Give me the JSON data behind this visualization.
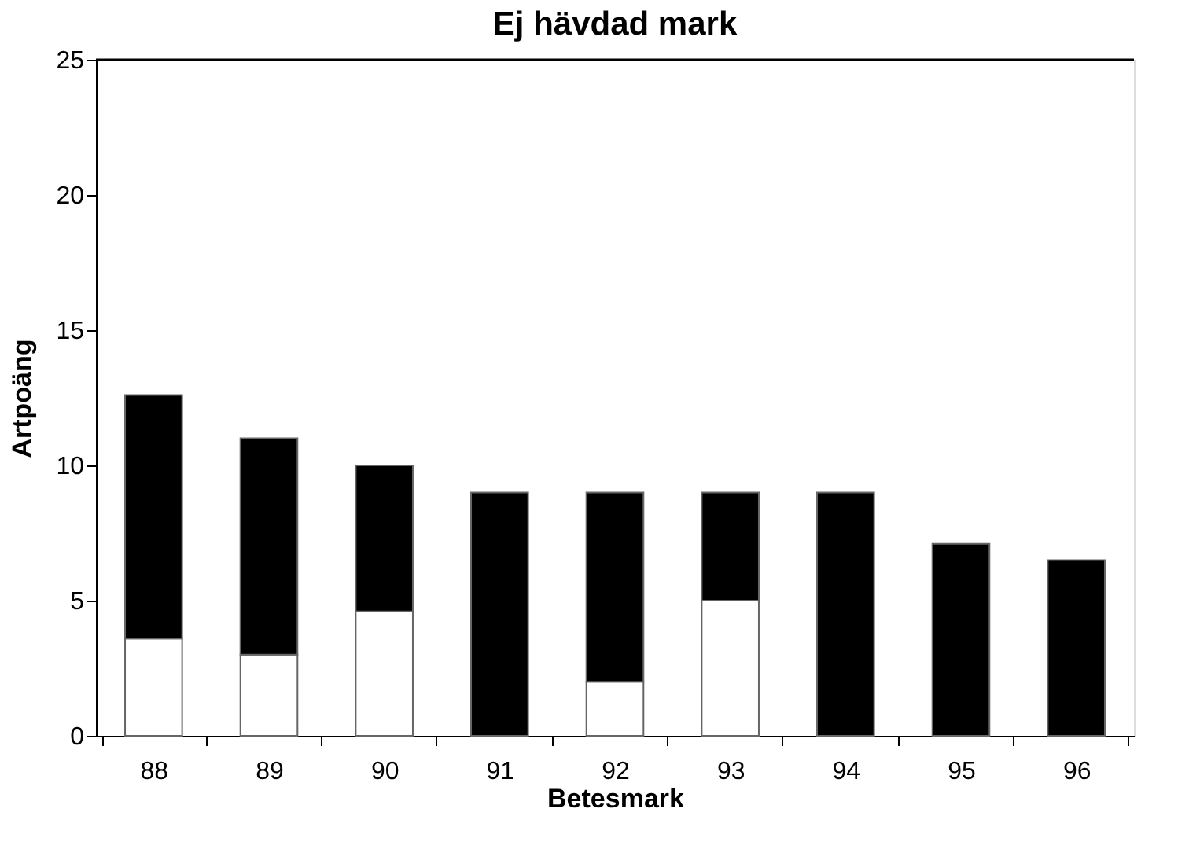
{
  "chart_data": {
    "type": "bar",
    "title": "Ej hävdad mark",
    "xlabel": "Betesmark",
    "ylabel": "Artpoäng",
    "categories": [
      "88",
      "89",
      "90",
      "91",
      "92",
      "93",
      "94",
      "95",
      "96"
    ],
    "stacked": true,
    "series": [
      {
        "color": "#ffffff",
        "values": [
          3.6,
          3.0,
          4.6,
          null,
          2.0,
          5.0,
          null,
          null,
          null
        ]
      },
      {
        "color": "#000000",
        "values": [
          9.0,
          8.0,
          5.4,
          9.0,
          7.0,
          4.0,
          9.0,
          7.1,
          6.5
        ]
      }
    ],
    "ylim": [
      0,
      25
    ],
    "yticks": [
      0,
      5,
      10,
      15,
      20,
      25
    ],
    "grid": false,
    "legend": false
  }
}
